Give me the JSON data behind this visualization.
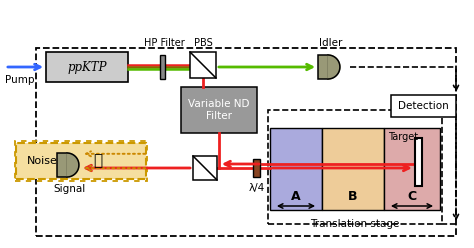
{
  "figsize": [
    4.74,
    2.48
  ],
  "dpi": 100,
  "bg_color": "#ffffff",
  "pump_label": "Pump",
  "ppktp_label": "ppKTP",
  "hp_filter_label": "HP Filter",
  "pbs_label": "PBS",
  "idler_label": "Idler",
  "detection_label": "Detection",
  "nd_filter_label": "Variable ND\nFilter",
  "noise_label": "Noise",
  "signal_label": "Signal",
  "lambda4_label": "λ/4",
  "target_label": "Target",
  "trans_stage_label": "Translation stage",
  "A_label": "A",
  "B_label": "B",
  "C_label": "C",
  "blue_color": "#3366ff",
  "green_color": "#55bb00",
  "red_color": "#ee2020",
  "orange_color": "#cc8800",
  "black": "#000000",
  "white": "#ffffff",
  "region_A_color": "#aaaadd",
  "region_B_color": "#eecc99",
  "region_C_color": "#ddaaaa",
  "noise_fill_color": "#f5dfa0",
  "noise_edge_color": "#cc9900",
  "ppktp_box_color": "#cccccc",
  "nd_filter_color": "#999999",
  "detector_color": "#999977",
  "hp_filter_color": "#888888"
}
